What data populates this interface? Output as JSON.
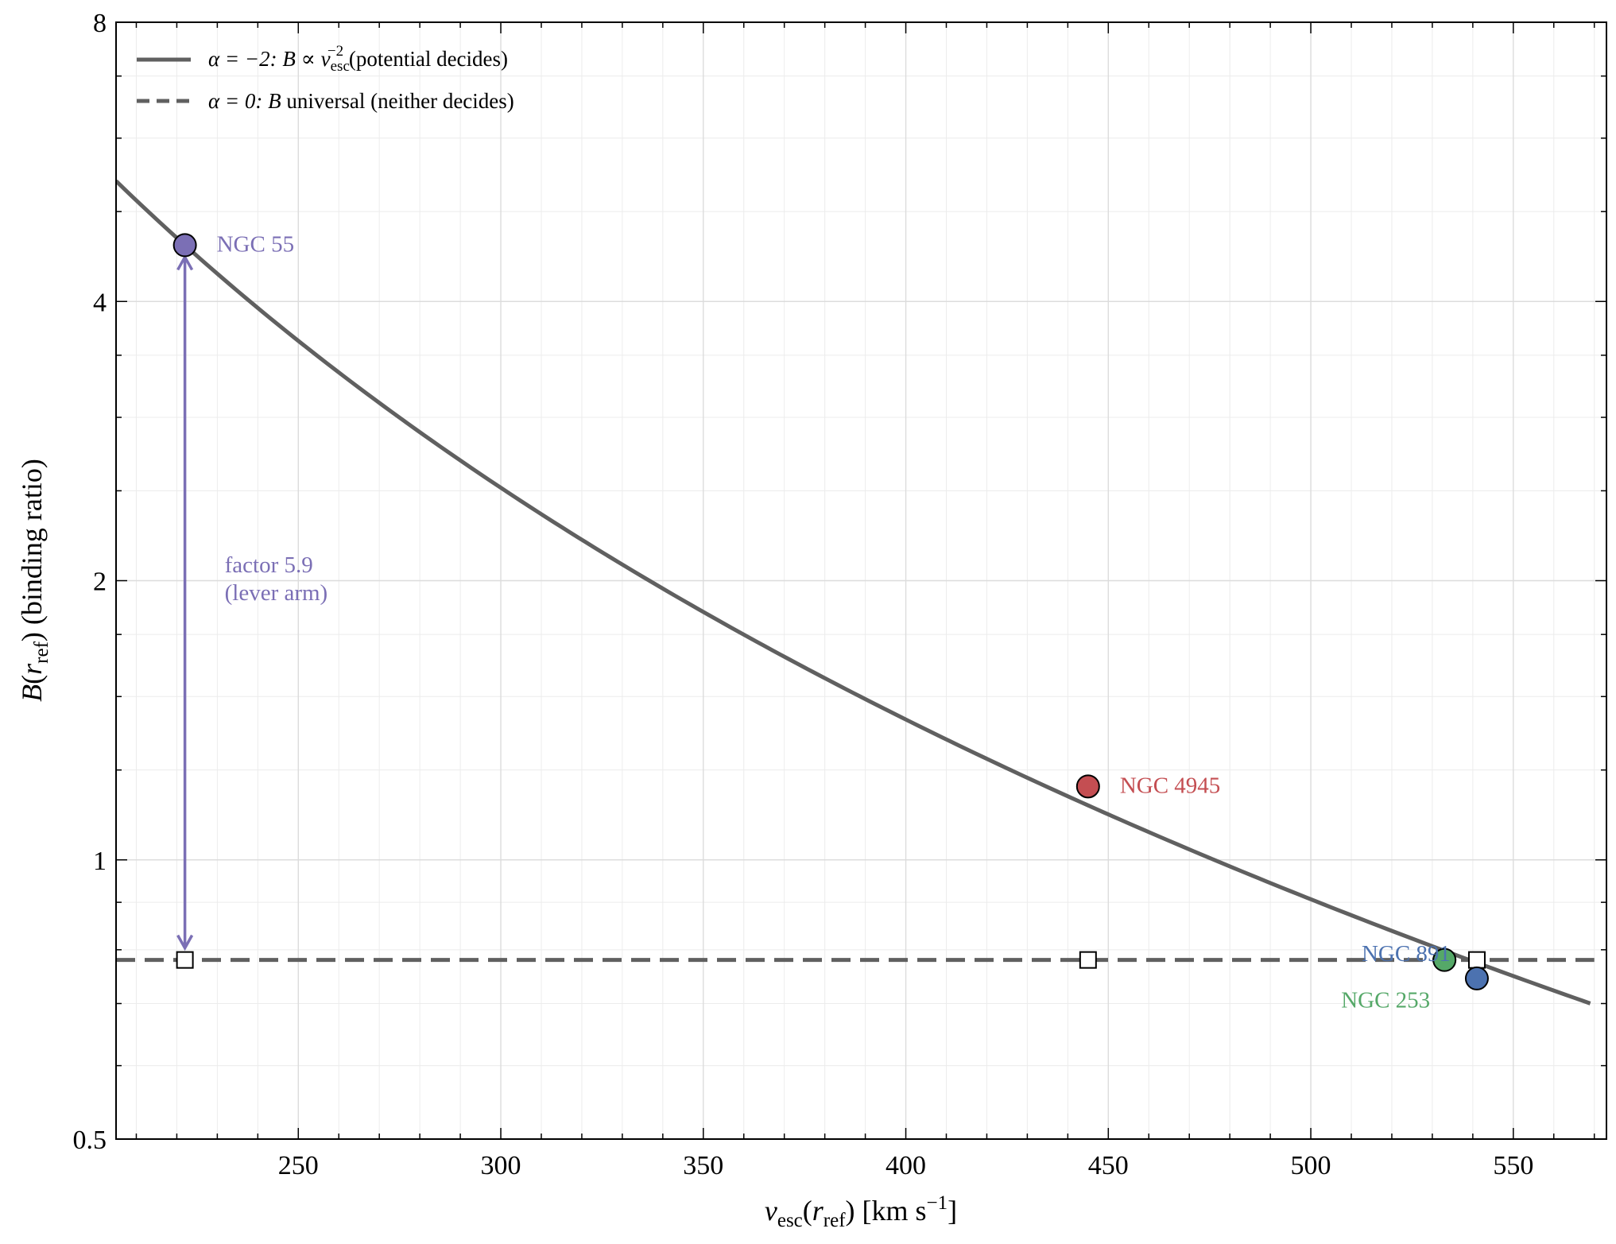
{
  "chart_data": {
    "type": "line",
    "title": "",
    "xlabel": {
      "main": "v",
      "sub": "esc",
      "paren_main": "r",
      "paren_sub": "ref",
      "units": "[km s",
      "units_sup": "−1",
      "units_close": "]"
    },
    "ylabel": {
      "main": "B",
      "paren_main": "r",
      "paren_sub": "ref",
      "rest": "(binding ratio)"
    },
    "xlim": [
      205,
      573
    ],
    "ylim": [
      0.5,
      8
    ],
    "yscale": "log2",
    "x_ticks": [
      250,
      300,
      350,
      400,
      450,
      500,
      550
    ],
    "x_tick_labels": [
      "250",
      "300",
      "350",
      "400",
      "450",
      "500",
      "550"
    ],
    "y_ticks": [
      0.5,
      1,
      2,
      4,
      8
    ],
    "y_tick_labels": [
      "0.5",
      "1",
      "2",
      "4",
      "8"
    ],
    "grid": true,
    "legend_position": "top-left",
    "series": [
      {
        "name": "α = −2: B ∝ v_esc^−2 (potential decides)",
        "legend": {
          "alpha": "α = −2: ",
          "b": "B",
          "prop": " ∝ ",
          "v": "v",
          "sub": "esc",
          "sup": "−2",
          "rest": " (potential decides)"
        },
        "style": "solid",
        "color": "#606060",
        "model": "B = 4.6 × (222 / v)^2",
        "x_range": [
          205,
          570
        ]
      },
      {
        "name": "α = 0: B universal (neither decides)",
        "legend": {
          "alpha": "α = 0: ",
          "b": "B",
          "rest": " universal (neither decides)"
        },
        "style": "dashed",
        "color": "#606060",
        "value": 0.78,
        "x_range": [
          205,
          570
        ]
      }
    ],
    "galaxies": [
      {
        "name": "NGC 55",
        "x": 222,
        "y": 4.6,
        "color": "#7b6fb5",
        "label_pos": "right"
      },
      {
        "name": "NGC 4945",
        "x": 445,
        "y": 1.2,
        "color": "#c44e52",
        "label_pos": "right"
      },
      {
        "name": "NGC 253",
        "x": 533,
        "y": 0.78,
        "color": "#55a868",
        "label_pos": "below-left"
      },
      {
        "name": "NGC 891",
        "x": 541,
        "y": 0.745,
        "color": "#4c72b0",
        "label_pos": "above-left"
      }
    ],
    "universal_markers": [
      {
        "x": 222,
        "y": 0.78
      },
      {
        "x": 445,
        "y": 0.78
      },
      {
        "x": 541,
        "y": 0.78
      }
    ],
    "annotation": {
      "line1": "factor 5.9",
      "line2": "(lever arm)",
      "color": "#7b6fb5",
      "arrow_x": 222,
      "arrow_from": 0.78,
      "arrow_to": 4.6
    }
  }
}
